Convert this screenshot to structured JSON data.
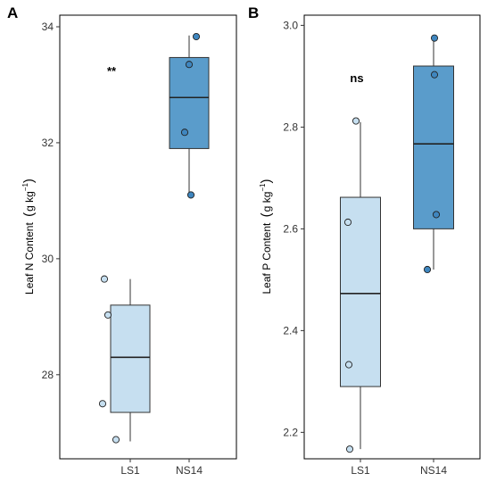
{
  "chart_data": [
    {
      "panel": "A",
      "type": "box",
      "ylabel": "Leaf N Content",
      "unit": "g kg",
      "unit_exp": "−1",
      "xlabel": "",
      "categories": [
        "LS1",
        "NS14"
      ],
      "ylim": [
        26.55,
        34.2
      ],
      "yticks": [
        28,
        30,
        32,
        34
      ],
      "annotation": "**",
      "colors": {
        "LS1": "#c6dff0",
        "NS14": "#5a9ccb"
      },
      "point_colors": {
        "LS1": "#c6dff0",
        "NS14": "#3f86bf"
      },
      "boxes": [
        {
          "category": "LS1",
          "min": 26.85,
          "q1": 27.35,
          "median": 28.3,
          "q3": 29.2,
          "max": 29.65
        },
        {
          "category": "NS14",
          "min": 31.1,
          "q1": 31.9,
          "median": 32.78,
          "q3": 33.47,
          "max": 33.85
        }
      ],
      "points": [
        {
          "category": "LS1",
          "values": [
            29.65,
            29.03,
            27.5,
            26.88
          ]
        },
        {
          "category": "NS14",
          "values": [
            33.83,
            33.35,
            32.18,
            31.1
          ]
        }
      ]
    },
    {
      "panel": "B",
      "type": "box",
      "ylabel": "Leaf P Content",
      "unit": "g kg",
      "unit_exp": "−1",
      "xlabel": "",
      "categories": [
        "LS1",
        "NS14"
      ],
      "ylim": [
        2.148,
        3.02
      ],
      "yticks": [
        2.2,
        2.4,
        2.6,
        2.8,
        3.0
      ],
      "ytick_labels": [
        "2.2",
        "2.4",
        "2.6",
        "2.8",
        "3.0"
      ],
      "annotation": "ns",
      "colors": {
        "LS1": "#c6dff0",
        "NS14": "#5a9ccb"
      },
      "point_colors": {
        "LS1": "#c6dff0",
        "NS14": "#3f86bf"
      },
      "boxes": [
        {
          "category": "LS1",
          "min": 2.167,
          "q1": 2.29,
          "median": 2.473,
          "q3": 2.662,
          "max": 2.81
        },
        {
          "category": "NS14",
          "min": 2.52,
          "q1": 2.6,
          "median": 2.767,
          "q3": 2.92,
          "max": 2.975
        }
      ],
      "points": [
        {
          "category": "LS1",
          "values": [
            2.812,
            2.613,
            2.333,
            2.167
          ]
        },
        {
          "category": "NS14",
          "values": [
            2.975,
            2.903,
            2.628,
            2.52
          ]
        }
      ]
    }
  ]
}
